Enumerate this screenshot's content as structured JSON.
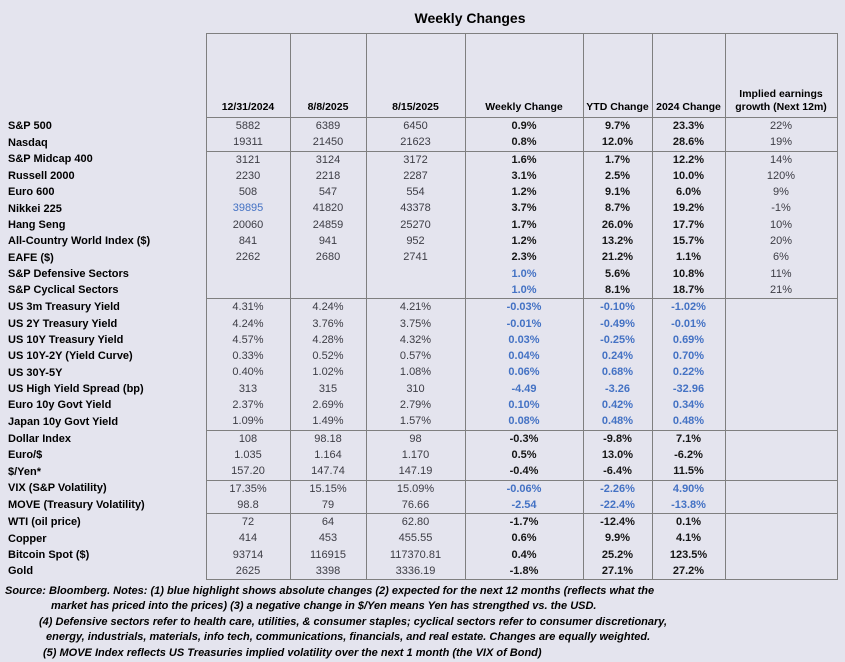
{
  "title": "Weekly Changes",
  "colors": {
    "accent_blue": "#4472c4",
    "background": "#e4e4ee",
    "border_gray": "#7f7f7f"
  },
  "notes": [
    "Source: Bloomberg. Notes: (1) blue highlight shows absolute changes (2) expected for the next 12 months (reflects what the",
    "market has priced into the prices) (3) a negative change in $/Yen means Yen has strengthed vs. the USD.",
    "(4) Defensive sectors refer to health care, utilities, & consumer staples; cyclical sectors refer to consumer discretionary,",
    "energy, industrials, materials, info tech, communications, financials, and real estate. Changes are equally weighted.",
    "(5) MOVE Index reflects US Treasuries implied volatility over the next 1 month (the VIX of Bond)"
  ],
  "chart_data": {
    "type": "table",
    "title": "Weekly Changes",
    "columns": [
      "12/31/2024",
      "8/8/2025",
      "8/15/2025",
      "Weekly Change",
      "YTD Change",
      "2024 Change",
      "Implied earnings growth (Next 12m)"
    ],
    "blue_meaning": "blue highlight shows absolute changes",
    "rows": [
      {
        "label": "S&P 500",
        "values": [
          "5882",
          "6389",
          "6450",
          "0.9%",
          "9.7%",
          "23.3%",
          "22%"
        ],
        "blue": []
      },
      {
        "label": "Nasdaq",
        "values": [
          "19311",
          "21450",
          "21623",
          "0.8%",
          "12.0%",
          "28.6%",
          "19%"
        ],
        "blue": []
      },
      {
        "label": "S&P Midcap 400",
        "values": [
          "3121",
          "3124",
          "3172",
          "1.6%",
          "1.7%",
          "12.2%",
          "14%"
        ],
        "blue": [],
        "group_start": true
      },
      {
        "label": "Russell 2000",
        "values": [
          "2230",
          "2218",
          "2287",
          "3.1%",
          "2.5%",
          "10.0%",
          "120%"
        ],
        "blue": []
      },
      {
        "label": "Euro 600",
        "values": [
          "508",
          "547",
          "554",
          "1.2%",
          "9.1%",
          "6.0%",
          "9%"
        ],
        "blue": []
      },
      {
        "label": "Nikkei 225",
        "values": [
          "39895",
          "41820",
          "43378",
          "3.7%",
          "8.7%",
          "19.2%",
          "-1%"
        ],
        "blue": [
          0
        ]
      },
      {
        "label": "Hang Seng",
        "values": [
          "20060",
          "24859",
          "25270",
          "1.7%",
          "26.0%",
          "17.7%",
          "10%"
        ],
        "blue": []
      },
      {
        "label": "All-Country World Index ($)",
        "values": [
          "841",
          "941",
          "952",
          "1.2%",
          "13.2%",
          "15.7%",
          "20%"
        ],
        "blue": []
      },
      {
        "label": "EAFE ($)",
        "values": [
          "2262",
          "2680",
          "2741",
          "2.3%",
          "21.2%",
          "1.1%",
          "6%"
        ],
        "blue": []
      },
      {
        "label": "S&P Defensive Sectors",
        "values": [
          "",
          "",
          "",
          "1.0%",
          "5.6%",
          "10.8%",
          "11%"
        ],
        "blue": [
          3
        ]
      },
      {
        "label": "S&P Cyclical Sectors",
        "values": [
          "",
          "",
          "",
          "1.0%",
          "8.1%",
          "18.7%",
          "21%"
        ],
        "blue": [
          3
        ]
      },
      {
        "label": "US 3m Treasury Yield",
        "values": [
          "4.31%",
          "4.24%",
          "4.21%",
          "-0.03%",
          "-0.10%",
          "-1.02%",
          ""
        ],
        "blue": [
          3,
          4,
          5
        ],
        "group_start": true
      },
      {
        "label": "US 2Y Treasury Yield",
        "values": [
          "4.24%",
          "3.76%",
          "3.75%",
          "-0.01%",
          "-0.49%",
          "-0.01%",
          ""
        ],
        "blue": [
          3,
          4,
          5
        ]
      },
      {
        "label": "US 10Y Treasury Yield",
        "values": [
          "4.57%",
          "4.28%",
          "4.32%",
          "0.03%",
          "-0.25%",
          "0.69%",
          ""
        ],
        "blue": [
          3,
          4,
          5
        ]
      },
      {
        "label": "US 10Y-2Y (Yield Curve)",
        "values": [
          "0.33%",
          "0.52%",
          "0.57%",
          "0.04%",
          "0.24%",
          "0.70%",
          ""
        ],
        "blue": [
          3,
          4,
          5
        ]
      },
      {
        "label": "US 30Y-5Y",
        "values": [
          "0.40%",
          "1.02%",
          "1.08%",
          "0.06%",
          "0.68%",
          "0.22%",
          ""
        ],
        "blue": [
          3,
          4,
          5
        ]
      },
      {
        "label": "US High Yield Spread (bp)",
        "values": [
          "313",
          "315",
          "310",
          "-4.49",
          "-3.26",
          "-32.96",
          ""
        ],
        "blue": [
          3,
          4,
          5
        ]
      },
      {
        "label": "Euro 10y Govt Yield",
        "values": [
          "2.37%",
          "2.69%",
          "2.79%",
          "0.10%",
          "0.42%",
          "0.34%",
          ""
        ],
        "blue": [
          3,
          4,
          5
        ]
      },
      {
        "label": "Japan 10y Govt Yield",
        "values": [
          "1.09%",
          "1.49%",
          "1.57%",
          "0.08%",
          "0.48%",
          "0.48%",
          ""
        ],
        "blue": [
          3,
          4,
          5
        ]
      },
      {
        "label": "Dollar Index",
        "values": [
          "108",
          "98.18",
          "98",
          "-0.3%",
          "-9.8%",
          "7.1%",
          ""
        ],
        "blue": [],
        "group_start": true
      },
      {
        "label": "Euro/$",
        "values": [
          "1.035",
          "1.164",
          "1.170",
          "0.5%",
          "13.0%",
          "-6.2%",
          ""
        ],
        "blue": []
      },
      {
        "label": "$/Yen*",
        "values": [
          "157.20",
          "147.74",
          "147.19",
          "-0.4%",
          "-6.4%",
          "11.5%",
          ""
        ],
        "blue": []
      },
      {
        "label": "VIX (S&P Volatility)",
        "values": [
          "17.35%",
          "15.15%",
          "15.09%",
          "-0.06%",
          "-2.26%",
          "4.90%",
          ""
        ],
        "blue": [
          3,
          4,
          5
        ],
        "group_start": true
      },
      {
        "label": "MOVE (Treasury Volatility)",
        "values": [
          "98.8",
          "79",
          "76.66",
          "-2.54",
          "-22.4%",
          "-13.8%",
          ""
        ],
        "blue": [
          3,
          4,
          5
        ]
      },
      {
        "label": "WTI (oil price)",
        "values": [
          "72",
          "64",
          "62.80",
          "-1.7%",
          "-12.4%",
          "0.1%",
          ""
        ],
        "blue": [],
        "group_start": true
      },
      {
        "label": "Copper",
        "values": [
          "414",
          "453",
          "455.55",
          "0.6%",
          "9.9%",
          "4.1%",
          ""
        ],
        "blue": []
      },
      {
        "label": "Bitcoin Spot ($)",
        "values": [
          "93714",
          "116915",
          "117370.81",
          "0.4%",
          "25.2%",
          "123.5%",
          ""
        ],
        "blue": []
      },
      {
        "label": "Gold",
        "values": [
          "2625",
          "3398",
          "3336.19",
          "-1.8%",
          "27.1%",
          "27.2%",
          ""
        ],
        "blue": []
      }
    ]
  }
}
